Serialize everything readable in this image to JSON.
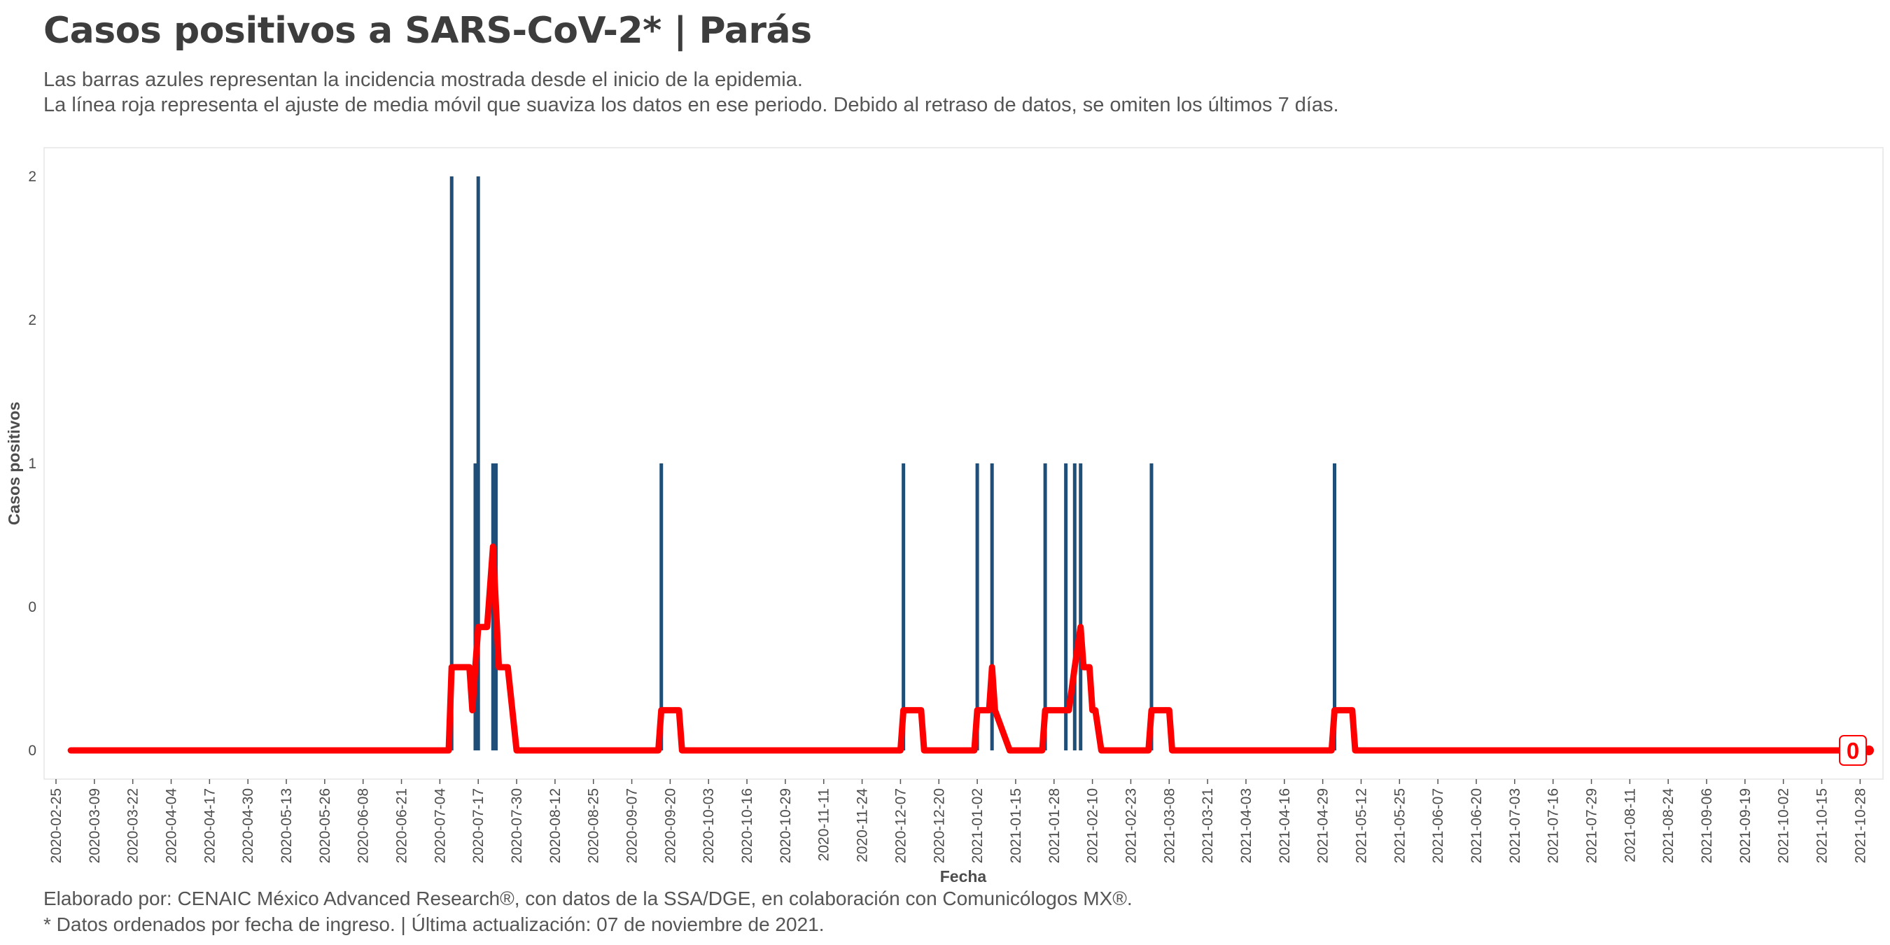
{
  "header": {
    "title": "Casos positivos a SARS-CoV-2* | Parás",
    "subtitle_line1": "Las barras azules representan la incidencia mostrada desde el inicio de la epidemia.",
    "subtitle_line2": "La línea roja representa el ajuste de media móvil que suaviza los datos en ese periodo. Debido al retraso de datos, se omiten los últimos 7 días."
  },
  "footer": {
    "caption_line1": "Elaborado por: CENAIC México Advanced Research®, con datos de la SSA/DGE, en colaboración con Comunicólogos MX®.",
    "caption_line2": "* Datos ordenados por fecha de ingreso. | Última actualización: 07 de noviembre de 2021."
  },
  "colors": {
    "bars": "#1f4e79",
    "moving_average": "#ff0000",
    "panel_border": "#e6e6e6",
    "text": "#444444"
  },
  "chart_data": {
    "type": "bar",
    "title": "Casos positivos a SARS-CoV-2* | Parás",
    "xlabel": "Fecha",
    "ylabel": "Casos positivos",
    "x_range": [
      "2020-02-25",
      "2021-10-31"
    ],
    "ylim": [
      0,
      2
    ],
    "y_ticks": [
      {
        "value": 0,
        "label": "0"
      },
      {
        "value": 0.5,
        "label": "0"
      },
      {
        "value": 1,
        "label": "1"
      },
      {
        "value": 1.5,
        "label": "2"
      },
      {
        "value": 2,
        "label": "2"
      }
    ],
    "x_ticks": [
      "2020-02-25",
      "2020-03-09",
      "2020-03-22",
      "2020-04-04",
      "2020-04-17",
      "2020-04-30",
      "2020-05-13",
      "2020-05-26",
      "2020-06-08",
      "2020-06-21",
      "2020-07-04",
      "2020-07-17",
      "2020-07-30",
      "2020-08-12",
      "2020-08-25",
      "2020-09-07",
      "2020-09-20",
      "2020-10-03",
      "2020-10-16",
      "2020-10-29",
      "2020-11-11",
      "2020-11-24",
      "2020-12-07",
      "2020-12-20",
      "2021-01-02",
      "2021-01-15",
      "2021-01-28",
      "2021-02-10",
      "2021-02-23",
      "2021-03-08",
      "2021-03-21",
      "2021-04-03",
      "2021-04-16",
      "2021-04-29",
      "2021-05-12",
      "2021-05-25",
      "2021-06-07",
      "2021-06-20",
      "2021-07-03",
      "2021-07-16",
      "2021-07-29",
      "2021-08-11",
      "2021-08-24",
      "2021-09-06",
      "2021-09-19",
      "2021-10-02",
      "2021-10-15",
      "2021-10-28"
    ],
    "series": [
      {
        "kind": "bars",
        "points": [
          {
            "date": "2020-07-08",
            "value": 2
          },
          {
            "date": "2020-07-16",
            "value": 1
          },
          {
            "date": "2020-07-17",
            "value": 2
          },
          {
            "date": "2020-07-22",
            "value": 1
          },
          {
            "date": "2020-07-23",
            "value": 1
          },
          {
            "date": "2020-09-17",
            "value": 1
          },
          {
            "date": "2020-12-08",
            "value": 1
          },
          {
            "date": "2021-01-02",
            "value": 1
          },
          {
            "date": "2021-01-07",
            "value": 1
          },
          {
            "date": "2021-01-25",
            "value": 1
          },
          {
            "date": "2021-02-01",
            "value": 1
          },
          {
            "date": "2021-02-04",
            "value": 1
          },
          {
            "date": "2021-02-06",
            "value": 1
          },
          {
            "date": "2021-03-02",
            "value": 1
          },
          {
            "date": "2021-05-03",
            "value": 1
          }
        ]
      },
      {
        "kind": "line",
        "points": [
          {
            "date": "2020-03-01",
            "value": 0
          },
          {
            "date": "2020-07-07",
            "value": 0
          },
          {
            "date": "2020-07-08",
            "value": 0.29
          },
          {
            "date": "2020-07-14",
            "value": 0.29
          },
          {
            "date": "2020-07-15",
            "value": 0.14
          },
          {
            "date": "2020-07-16",
            "value": 0.29
          },
          {
            "date": "2020-07-17",
            "value": 0.43
          },
          {
            "date": "2020-07-20",
            "value": 0.43
          },
          {
            "date": "2020-07-22",
            "value": 0.71
          },
          {
            "date": "2020-07-24",
            "value": 0.29
          },
          {
            "date": "2020-07-27",
            "value": 0.29
          },
          {
            "date": "2020-07-30",
            "value": 0
          },
          {
            "date": "2020-09-16",
            "value": 0
          },
          {
            "date": "2020-09-17",
            "value": 0.14
          },
          {
            "date": "2020-09-23",
            "value": 0.14
          },
          {
            "date": "2020-09-24",
            "value": 0
          },
          {
            "date": "2020-12-07",
            "value": 0
          },
          {
            "date": "2020-12-08",
            "value": 0.14
          },
          {
            "date": "2020-12-14",
            "value": 0.14
          },
          {
            "date": "2020-12-15",
            "value": 0
          },
          {
            "date": "2021-01-01",
            "value": 0
          },
          {
            "date": "2021-01-02",
            "value": 0.14
          },
          {
            "date": "2021-01-06",
            "value": 0.14
          },
          {
            "date": "2021-01-07",
            "value": 0.29
          },
          {
            "date": "2021-01-08",
            "value": 0.14
          },
          {
            "date": "2021-01-13",
            "value": 0
          },
          {
            "date": "2021-01-24",
            "value": 0
          },
          {
            "date": "2021-01-25",
            "value": 0.14
          },
          {
            "date": "2021-02-02",
            "value": 0.14
          },
          {
            "date": "2021-02-04",
            "value": 0.29
          },
          {
            "date": "2021-02-06",
            "value": 0.43
          },
          {
            "date": "2021-02-07",
            "value": 0.29
          },
          {
            "date": "2021-02-09",
            "value": 0.29
          },
          {
            "date": "2021-02-10",
            "value": 0.14
          },
          {
            "date": "2021-02-11",
            "value": 0.14
          },
          {
            "date": "2021-02-13",
            "value": 0
          },
          {
            "date": "2021-03-01",
            "value": 0
          },
          {
            "date": "2021-03-02",
            "value": 0.14
          },
          {
            "date": "2021-03-08",
            "value": 0.14
          },
          {
            "date": "2021-03-09",
            "value": 0
          },
          {
            "date": "2021-05-02",
            "value": 0
          },
          {
            "date": "2021-05-03",
            "value": 0.14
          },
          {
            "date": "2021-05-09",
            "value": 0.14
          },
          {
            "date": "2021-05-10",
            "value": 0
          },
          {
            "date": "2021-10-31",
            "value": 0
          }
        ]
      }
    ],
    "end_label": {
      "date": "2021-10-31",
      "text": "0"
    }
  }
}
